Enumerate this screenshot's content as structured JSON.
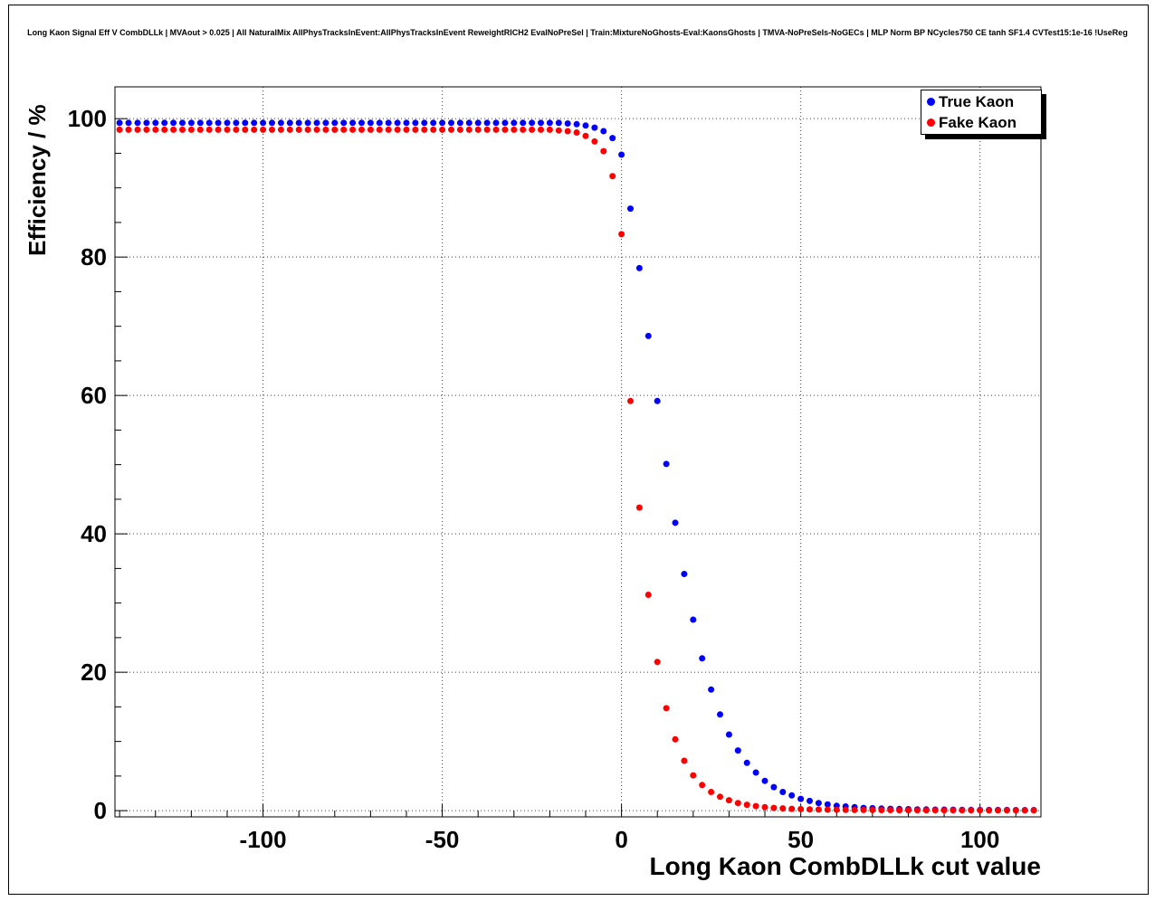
{
  "title": "Long Kaon Signal Eff V CombDLLk | MVAout > 0.025 | All NaturalMix AllPhysTracksInEvent:AllPhysTracksInEvent ReweightRICH2 EvalNoPreSel | Train:MixtureNoGhosts-Eval:KaonsGhosts | TMVA-NoPreSels-NoGECs | MLP Norm BP NCycles750 CE tanh SF1.4 CVTest15:1e-16 !UseReg",
  "chart_data": {
    "type": "scatter",
    "xlabel": "Long Kaon CombDLLk cut value",
    "ylabel": "Efficiency / %",
    "xlim": [
      -141.3,
      117.0
    ],
    "ylim": [
      -0.9,
      104.6
    ],
    "xticks": [
      -100,
      -50,
      0,
      50,
      100
    ],
    "yticks": [
      0,
      20,
      40,
      60,
      80,
      100
    ],
    "x_minor_step": 10,
    "y_minor_step": 5,
    "grid": "dotted",
    "legend_position": "top-right",
    "x_start": -140,
    "x_step": 2.5,
    "series": [
      {
        "name": "True Kaon",
        "color": "#0000ff",
        "marker": "circle",
        "values": [
          99.4,
          99.4,
          99.4,
          99.4,
          99.4,
          99.4,
          99.4,
          99.4,
          99.4,
          99.4,
          99.4,
          99.4,
          99.4,
          99.4,
          99.4,
          99.4,
          99.4,
          99.4,
          99.4,
          99.4,
          99.4,
          99.4,
          99.4,
          99.4,
          99.4,
          99.4,
          99.4,
          99.4,
          99.4,
          99.4,
          99.4,
          99.4,
          99.4,
          99.4,
          99.4,
          99.4,
          99.4,
          99.4,
          99.4,
          99.4,
          99.4,
          99.4,
          99.4,
          99.4,
          99.4,
          99.4,
          99.4,
          99.4,
          99.4,
          99.4,
          99.3,
          99.2,
          99.0,
          98.7,
          98.2,
          97.2,
          94.8,
          87.0,
          78.4,
          68.6,
          59.2,
          50.1,
          41.6,
          34.2,
          27.6,
          22.0,
          17.5,
          13.9,
          11.0,
          8.7,
          6.9,
          5.5,
          4.3,
          3.4,
          2.7,
          2.2,
          1.7,
          1.4,
          1.1,
          0.9,
          0.7,
          0.6,
          0.5,
          0.4,
          0.35,
          0.3,
          0.27,
          0.24,
          0.21,
          0.19,
          0.17,
          0.15,
          0.14,
          0.13,
          0.12,
          0.11,
          0.1,
          0.1,
          0.09,
          0.09,
          0.08,
          0.08,
          0.08
        ]
      },
      {
        "name": "Fake Kaon",
        "color": "#ff0000",
        "marker": "circle",
        "values": [
          98.4,
          98.4,
          98.4,
          98.4,
          98.4,
          98.4,
          98.4,
          98.4,
          98.4,
          98.4,
          98.4,
          98.4,
          98.4,
          98.4,
          98.4,
          98.4,
          98.4,
          98.4,
          98.4,
          98.4,
          98.4,
          98.4,
          98.4,
          98.4,
          98.4,
          98.4,
          98.4,
          98.4,
          98.4,
          98.4,
          98.4,
          98.4,
          98.4,
          98.4,
          98.4,
          98.4,
          98.4,
          98.4,
          98.4,
          98.4,
          98.4,
          98.4,
          98.4,
          98.4,
          98.4,
          98.4,
          98.4,
          98.4,
          98.4,
          98.3,
          98.2,
          98.0,
          97.5,
          96.7,
          95.3,
          91.7,
          83.3,
          59.2,
          43.8,
          31.2,
          21.5,
          14.8,
          10.3,
          7.2,
          5.1,
          3.7,
          2.7,
          2.0,
          1.5,
          1.1,
          0.85,
          0.65,
          0.5,
          0.4,
          0.33,
          0.27,
          0.22,
          0.19,
          0.16,
          0.14,
          0.12,
          0.11,
          0.1,
          0.09,
          0.09,
          0.08,
          0.08,
          0.07,
          0.07,
          0.06,
          0.06,
          0.06,
          0.05,
          0.05,
          0.05,
          0.05,
          0.05,
          0.04,
          0.04,
          0.04,
          0.04,
          0.04,
          0.04
        ]
      }
    ]
  }
}
